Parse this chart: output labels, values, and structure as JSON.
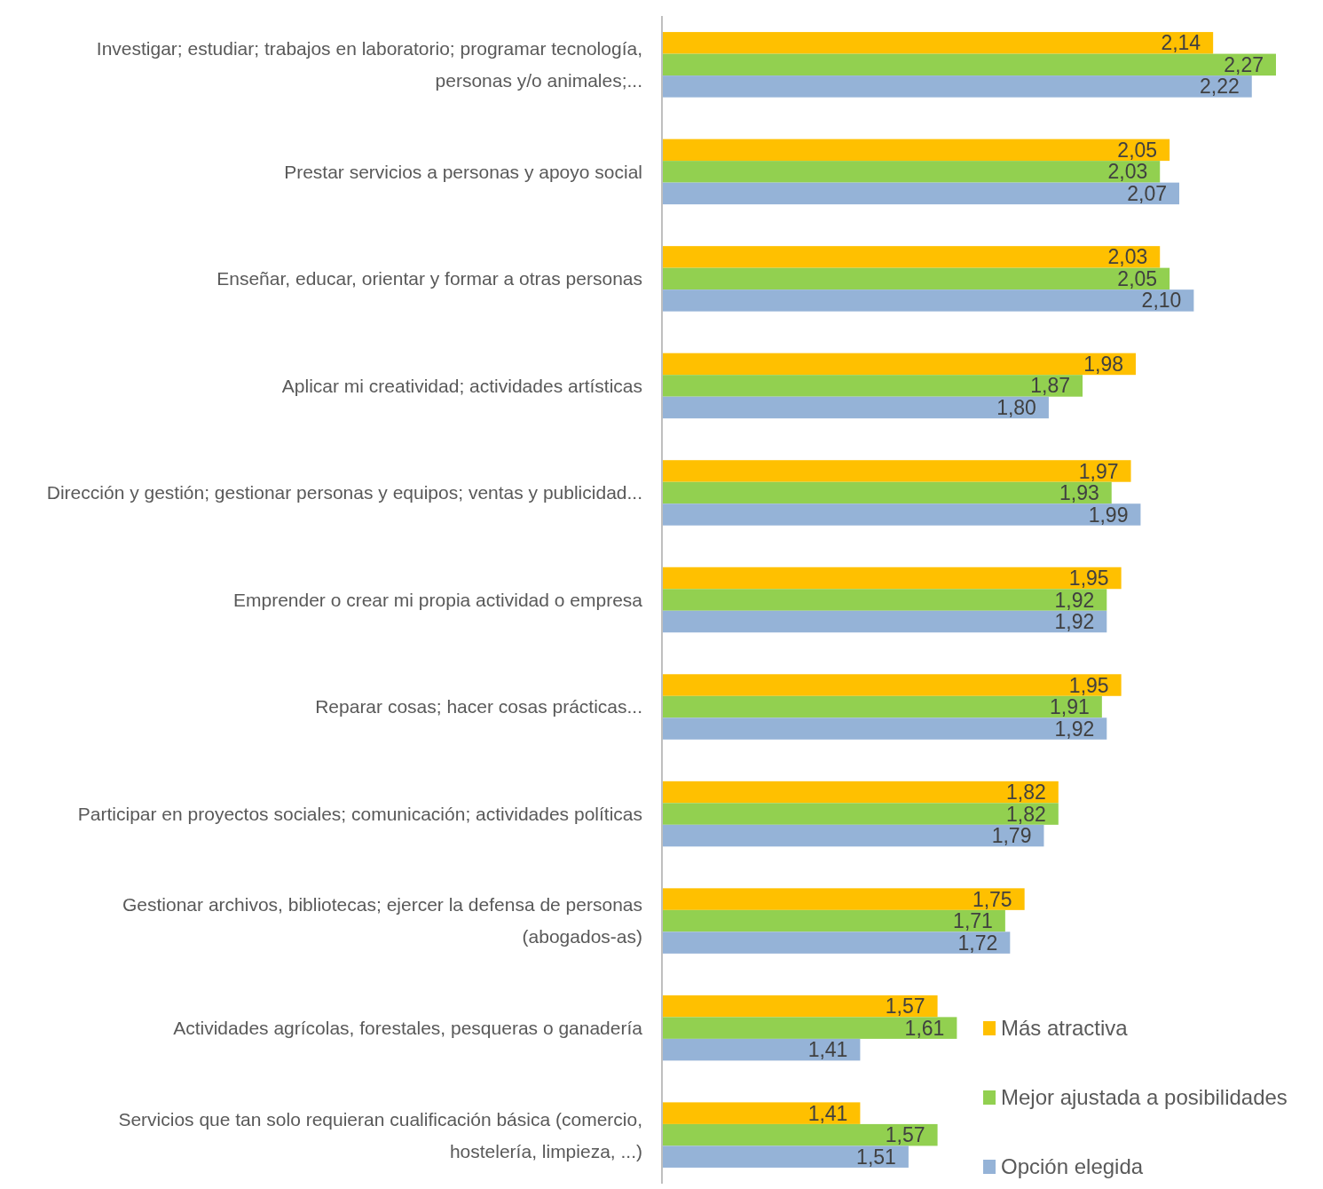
{
  "chart_data": {
    "type": "bar",
    "orientation": "horizontal",
    "categories": [
      "Investigar; estudiar; trabajos en laboratorio; programar tecnología, personas y/o animales;...",
      "Prestar servicios a personas y apoyo social",
      "Enseñar, educar, orientar y formar a otras personas",
      "Aplicar mi creatividad; actividades artísticas",
      "Dirección y gestión; gestionar personas y equipos; ventas y publicidad...",
      "Emprender o crear mi propia actividad o empresa",
      "Reparar cosas; hacer cosas prácticas...",
      "Participar en proyectos sociales; comunicación; actividades políticas",
      "Gestionar archivos, bibliotecas; ejercer la defensa de personas (abogados-as)",
      "Actividades agrícolas, forestales, pesqueras o ganadería",
      "Servicios que tan solo requieran cualificación básica (comercio, hostelería, limpieza, ...)"
    ],
    "series": [
      {
        "name": "Más atractiva",
        "color": "#ffc000",
        "values": [
          2.14,
          2.05,
          2.03,
          1.98,
          1.97,
          1.95,
          1.95,
          1.82,
          1.75,
          1.57,
          1.41
        ],
        "value_labels": [
          "2,14",
          "2,05",
          "2,03",
          "1,98",
          "1,97",
          "1,95",
          "1,95",
          "1,82",
          "1,75",
          "1,57",
          "1,41"
        ]
      },
      {
        "name": "Mejor ajustada a posibilidades",
        "color": "#92d050",
        "values": [
          2.27,
          2.03,
          2.05,
          1.87,
          1.93,
          1.92,
          1.91,
          1.82,
          1.71,
          1.61,
          1.57
        ],
        "value_labels": [
          "2,27",
          "2,03",
          "2,05",
          "1,87",
          "1,93",
          "1,92",
          "1,91",
          "1,82",
          "1,71",
          "1,61",
          "1,57"
        ]
      },
      {
        "name": "Opción elegida",
        "color": "#95b3d7",
        "values": [
          2.22,
          2.07,
          2.1,
          1.8,
          1.99,
          1.92,
          1.92,
          1.79,
          1.72,
          1.41,
          1.51
        ],
        "value_labels": [
          "2,22",
          "2,07",
          "2,10",
          "1,80",
          "1,99",
          "1,92",
          "1,92",
          "1,79",
          "1,72",
          "1,41",
          "1,51"
        ]
      }
    ],
    "xlim": [
      1,
      2.27
    ],
    "tick_labels": "y",
    "legend": "bottom right"
  }
}
